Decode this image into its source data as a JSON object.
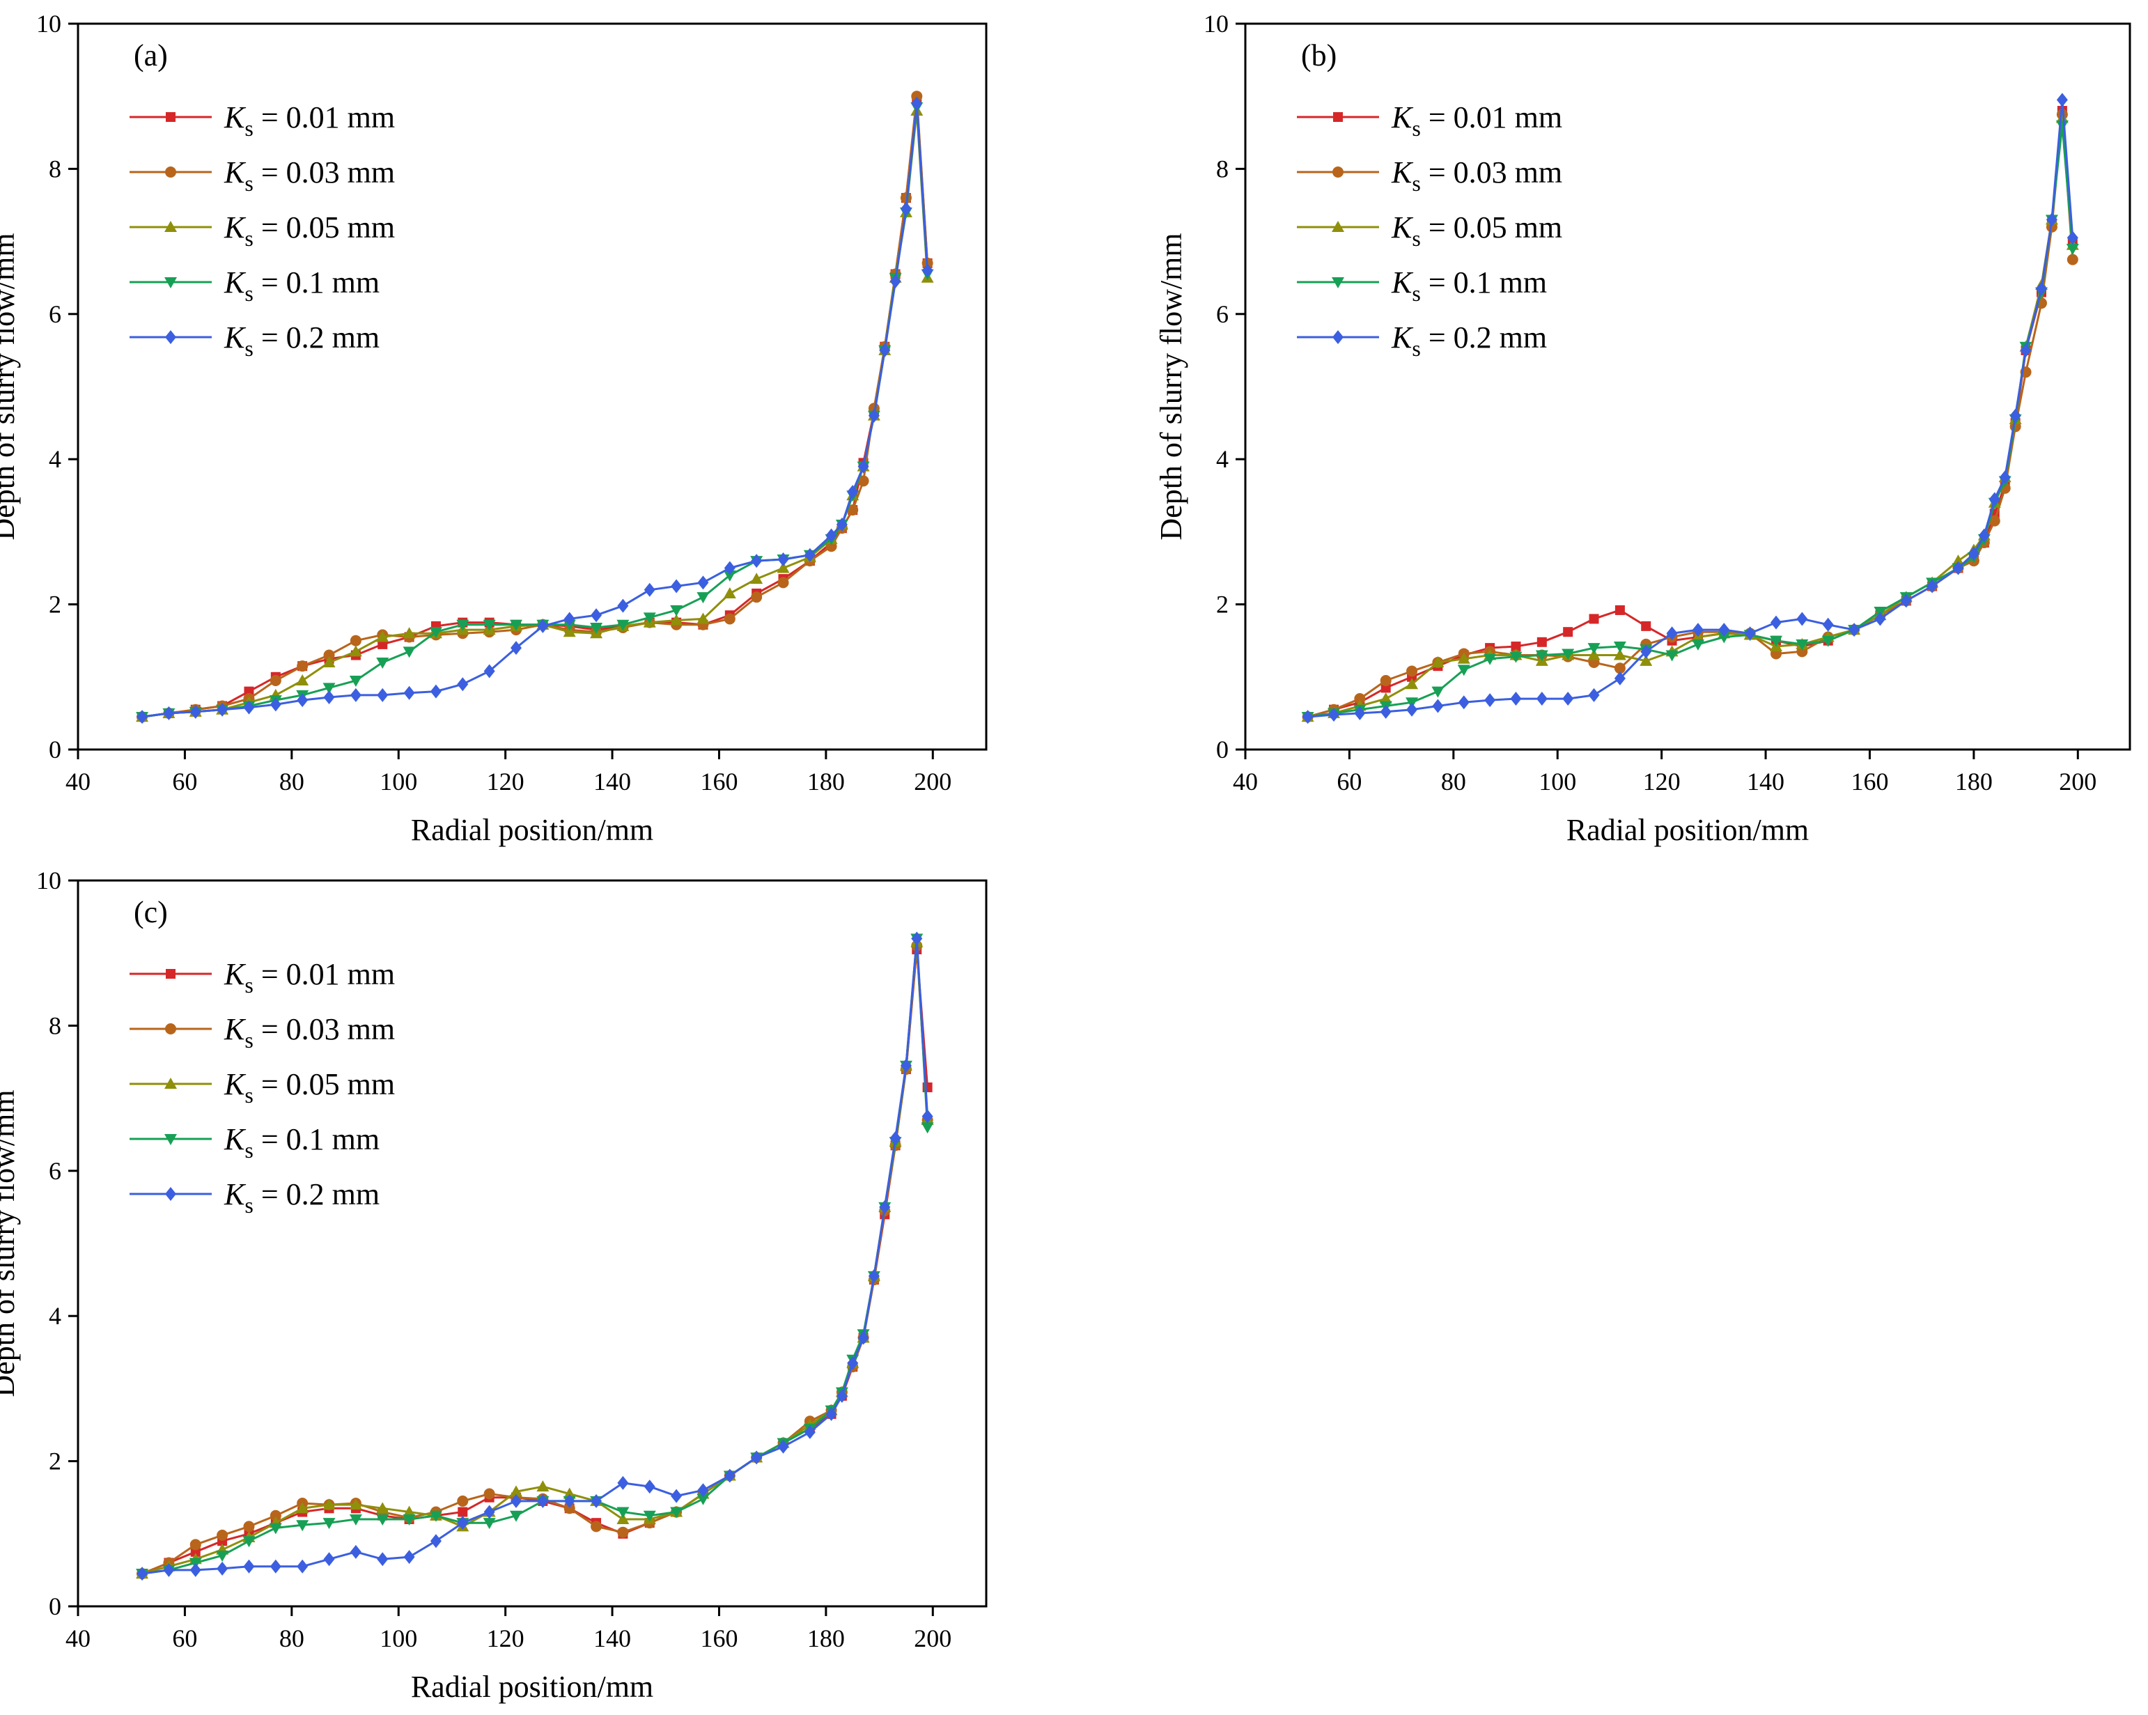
{
  "figure": {
    "series_colors": [
      "#d62728",
      "#b8651b",
      "#8f8f0a",
      "#17a055",
      "#3b5fe0"
    ],
    "marker_shapes": [
      "square",
      "circle",
      "triangle-up",
      "triangle-down",
      "diamond"
    ]
  },
  "legend": [
    {
      "sym": "K",
      "sub": "s",
      "text": " = 0.01 mm"
    },
    {
      "sym": "K",
      "sub": "s",
      "text": " = 0.03 mm"
    },
    {
      "sym": "K",
      "sub": "s",
      "text": " = 0.05 mm"
    },
    {
      "sym": "K",
      "sub": "s",
      "text": " = 0.1 mm"
    },
    {
      "sym": "K",
      "sub": "s",
      "text": " = 0.2 mm"
    }
  ],
  "chart_data": [
    {
      "type": "line",
      "panel_label": "(a)",
      "xlabel": "Radial position/mm",
      "ylabel": "Depth of slurry flow/mm",
      "xlim": [
        40,
        210
      ],
      "ylim": [
        0,
        10
      ],
      "xticks": [
        40,
        60,
        80,
        100,
        120,
        140,
        160,
        180,
        200
      ],
      "yticks": [
        0,
        2,
        4,
        6,
        8,
        10
      ],
      "x": [
        52,
        57,
        62,
        67,
        72,
        77,
        82,
        87,
        92,
        97,
        102,
        107,
        112,
        117,
        122,
        127,
        132,
        137,
        142,
        147,
        152,
        157,
        162,
        167,
        172,
        177,
        181,
        183,
        185,
        187,
        189,
        191,
        193,
        195,
        197,
        199
      ],
      "series": [
        {
          "name": "Ks = 0.01 mm",
          "values": [
            0.45,
            0.5,
            0.55,
            0.6,
            0.8,
            1.0,
            1.15,
            1.25,
            1.3,
            1.45,
            1.55,
            1.7,
            1.75,
            1.75,
            1.72,
            1.72,
            1.7,
            1.65,
            1.7,
            1.75,
            1.75,
            1.72,
            1.85,
            2.15,
            2.35,
            2.6,
            2.85,
            3.05,
            3.3,
            3.95,
            4.65,
            5.55,
            6.55,
            7.6,
            8.95,
            6.7
          ]
        },
        {
          "name": "Ks = 0.03 mm",
          "values": [
            0.45,
            0.5,
            0.55,
            0.6,
            0.7,
            0.95,
            1.15,
            1.3,
            1.5,
            1.58,
            1.55,
            1.58,
            1.6,
            1.62,
            1.65,
            1.72,
            1.65,
            1.62,
            1.68,
            1.75,
            1.72,
            1.72,
            1.8,
            2.1,
            2.3,
            2.6,
            2.8,
            3.05,
            3.3,
            3.7,
            4.7,
            5.55,
            6.55,
            7.6,
            9.0,
            6.7
          ]
        },
        {
          "name": "Ks = 0.05 mm",
          "values": [
            0.45,
            0.5,
            0.52,
            0.55,
            0.65,
            0.75,
            0.95,
            1.2,
            1.35,
            1.55,
            1.6,
            1.6,
            1.65,
            1.65,
            1.7,
            1.72,
            1.62,
            1.6,
            1.7,
            1.75,
            1.78,
            1.8,
            2.15,
            2.35,
            2.5,
            2.65,
            2.9,
            3.1,
            3.5,
            3.9,
            4.6,
            5.5,
            6.5,
            7.4,
            8.8,
            6.5
          ]
        },
        {
          "name": "Ks = 0.1 mm",
          "values": [
            0.45,
            0.5,
            0.52,
            0.55,
            0.6,
            0.68,
            0.75,
            0.85,
            0.95,
            1.2,
            1.35,
            1.62,
            1.72,
            1.72,
            1.72,
            1.72,
            1.72,
            1.68,
            1.72,
            1.82,
            1.92,
            2.1,
            2.4,
            2.6,
            2.62,
            2.68,
            2.9,
            3.1,
            3.5,
            3.9,
            4.6,
            5.5,
            6.5,
            7.4,
            8.85,
            6.55
          ]
        },
        {
          "name": "Ks = 0.2 mm",
          "values": [
            0.45,
            0.5,
            0.52,
            0.55,
            0.58,
            0.62,
            0.68,
            0.72,
            0.75,
            0.75,
            0.78,
            0.8,
            0.9,
            1.08,
            1.4,
            1.7,
            1.8,
            1.85,
            1.98,
            2.2,
            2.25,
            2.3,
            2.5,
            2.6,
            2.62,
            2.68,
            2.95,
            3.1,
            3.55,
            3.9,
            4.6,
            5.5,
            6.45,
            7.45,
            8.9,
            6.6
          ]
        }
      ]
    },
    {
      "type": "line",
      "panel_label": "(b)",
      "xlabel": "Radial position/mm",
      "ylabel": "Depth of slurry flow/mm",
      "xlim": [
        40,
        210
      ],
      "ylim": [
        0,
        10
      ],
      "xticks": [
        40,
        60,
        80,
        100,
        120,
        140,
        160,
        180,
        200
      ],
      "yticks": [
        0,
        2,
        4,
        6,
        8,
        10
      ],
      "x": [
        52,
        57,
        62,
        67,
        72,
        77,
        82,
        87,
        92,
        97,
        102,
        107,
        112,
        117,
        122,
        127,
        132,
        137,
        142,
        147,
        152,
        157,
        162,
        167,
        172,
        177,
        180,
        182,
        184,
        186,
        188,
        190,
        193,
        195,
        197,
        199
      ],
      "series": [
        {
          "name": "Ks = 0.01 mm",
          "values": [
            0.45,
            0.55,
            0.65,
            0.85,
            1.0,
            1.15,
            1.3,
            1.4,
            1.42,
            1.48,
            1.62,
            1.8,
            1.92,
            1.7,
            1.5,
            1.55,
            1.6,
            1.58,
            1.5,
            1.42,
            1.5,
            1.65,
            1.85,
            2.05,
            2.25,
            2.5,
            2.65,
            2.85,
            3.25,
            3.65,
            4.5,
            5.5,
            6.3,
            7.25,
            8.8,
            7.0
          ]
        },
        {
          "name": "Ks = 0.03 mm",
          "values": [
            0.45,
            0.55,
            0.7,
            0.95,
            1.08,
            1.2,
            1.32,
            1.35,
            1.3,
            1.3,
            1.28,
            1.2,
            1.12,
            1.45,
            1.55,
            1.62,
            1.62,
            1.6,
            1.32,
            1.35,
            1.55,
            1.65,
            1.85,
            2.05,
            2.25,
            2.5,
            2.6,
            2.85,
            3.15,
            3.6,
            4.45,
            5.2,
            6.15,
            7.2,
            8.75,
            6.75
          ]
        },
        {
          "name": "Ks = 0.05 mm",
          "values": [
            0.45,
            0.5,
            0.6,
            0.7,
            0.9,
            1.2,
            1.25,
            1.3,
            1.3,
            1.22,
            1.3,
            1.3,
            1.3,
            1.22,
            1.35,
            1.55,
            1.6,
            1.58,
            1.42,
            1.45,
            1.55,
            1.65,
            1.85,
            2.1,
            2.3,
            2.6,
            2.75,
            2.95,
            3.4,
            3.75,
            4.55,
            5.55,
            6.4,
            7.3,
            8.7,
            6.95
          ]
        },
        {
          "name": "Ks = 0.1 mm",
          "values": [
            0.45,
            0.5,
            0.55,
            0.6,
            0.65,
            0.8,
            1.1,
            1.25,
            1.28,
            1.3,
            1.32,
            1.4,
            1.42,
            1.38,
            1.3,
            1.45,
            1.55,
            1.58,
            1.5,
            1.45,
            1.5,
            1.65,
            1.9,
            2.1,
            2.3,
            2.5,
            2.65,
            2.9,
            3.4,
            3.7,
            4.55,
            5.55,
            6.3,
            7.3,
            8.6,
            6.9
          ]
        },
        {
          "name": "Ks = 0.2 mm",
          "values": [
            0.45,
            0.48,
            0.5,
            0.52,
            0.55,
            0.6,
            0.65,
            0.68,
            0.7,
            0.7,
            0.7,
            0.75,
            0.98,
            1.35,
            1.6,
            1.65,
            1.65,
            1.6,
            1.75,
            1.8,
            1.72,
            1.65,
            1.8,
            2.05,
            2.25,
            2.5,
            2.7,
            2.95,
            3.45,
            3.75,
            4.6,
            5.5,
            6.35,
            7.3,
            8.95,
            7.05
          ]
        }
      ]
    },
    {
      "type": "line",
      "panel_label": "(c)",
      "xlabel": "Radial position/mm",
      "ylabel": "Depth of slurry flow/mm",
      "xlim": [
        40,
        210
      ],
      "ylim": [
        0,
        10
      ],
      "xticks": [
        40,
        60,
        80,
        100,
        120,
        140,
        160,
        180,
        200
      ],
      "yticks": [
        0,
        2,
        4,
        6,
        8,
        10
      ],
      "x": [
        52,
        57,
        62,
        67,
        72,
        77,
        82,
        87,
        92,
        97,
        102,
        107,
        112,
        117,
        122,
        127,
        132,
        137,
        142,
        147,
        152,
        157,
        162,
        167,
        172,
        177,
        181,
        183,
        185,
        187,
        189,
        191,
        193,
        195,
        197,
        199
      ],
      "series": [
        {
          "name": "Ks = 0.01 mm",
          "values": [
            0.45,
            0.6,
            0.75,
            0.9,
            1.0,
            1.15,
            1.3,
            1.35,
            1.35,
            1.25,
            1.2,
            1.25,
            1.3,
            1.5,
            1.5,
            1.45,
            1.35,
            1.15,
            1.0,
            1.15,
            1.3,
            1.55,
            1.8,
            2.05,
            2.25,
            2.45,
            2.65,
            2.9,
            3.3,
            3.7,
            4.5,
            5.4,
            6.35,
            7.4,
            9.05,
            7.15
          ]
        },
        {
          "name": "Ks = 0.03 mm",
          "values": [
            0.45,
            0.6,
            0.85,
            0.98,
            1.1,
            1.25,
            1.42,
            1.4,
            1.42,
            1.3,
            1.22,
            1.3,
            1.45,
            1.55,
            1.5,
            1.48,
            1.35,
            1.1,
            1.02,
            1.15,
            1.3,
            1.55,
            1.8,
            2.05,
            2.25,
            2.55,
            2.7,
            2.95,
            3.3,
            3.7,
            4.5,
            5.45,
            6.35,
            7.4,
            9.1,
            6.7
          ]
        },
        {
          "name": "Ks = 0.05 mm",
          "values": [
            0.45,
            0.55,
            0.65,
            0.78,
            0.95,
            1.15,
            1.35,
            1.4,
            1.4,
            1.35,
            1.3,
            1.25,
            1.1,
            1.3,
            1.58,
            1.65,
            1.55,
            1.45,
            1.2,
            1.2,
            1.3,
            1.55,
            1.8,
            2.05,
            2.25,
            2.5,
            2.7,
            2.95,
            3.35,
            3.7,
            4.55,
            5.5,
            6.4,
            7.45,
            9.15,
            6.7
          ]
        },
        {
          "name": "Ks = 0.1 mm",
          "values": [
            0.45,
            0.5,
            0.6,
            0.7,
            0.9,
            1.08,
            1.12,
            1.15,
            1.2,
            1.2,
            1.2,
            1.25,
            1.15,
            1.15,
            1.25,
            1.45,
            1.45,
            1.45,
            1.3,
            1.25,
            1.3,
            1.48,
            1.8,
            2.05,
            2.25,
            2.45,
            2.7,
            2.95,
            3.4,
            3.75,
            4.55,
            5.5,
            6.4,
            7.45,
            9.2,
            6.6
          ]
        },
        {
          "name": "Ks = 0.2 mm",
          "values": [
            0.45,
            0.5,
            0.5,
            0.52,
            0.55,
            0.55,
            0.55,
            0.65,
            0.75,
            0.65,
            0.68,
            0.9,
            1.15,
            1.3,
            1.45,
            1.45,
            1.45,
            1.45,
            1.7,
            1.65,
            1.52,
            1.6,
            1.8,
            2.05,
            2.2,
            2.4,
            2.65,
            2.9,
            3.35,
            3.7,
            4.55,
            5.5,
            6.45,
            7.45,
            9.2,
            6.75
          ]
        }
      ]
    }
  ]
}
